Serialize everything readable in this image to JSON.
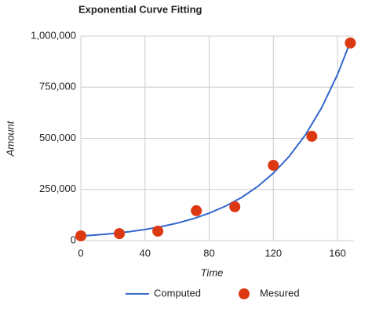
{
  "chart_data": {
    "type": "combo",
    "title": "Exponential Curve Fitting",
    "x_label": "Time",
    "y_label": "Amount",
    "xlim": [
      0,
      170
    ],
    "xticks": [
      0,
      40,
      80,
      120,
      160
    ],
    "ylim": [
      0,
      1000000
    ],
    "yticks": [
      {
        "value": 0,
        "label": "0"
      },
      {
        "value": 250000,
        "label": "250,000"
      },
      {
        "value": 500000,
        "label": "500,000"
      },
      {
        "value": 750000,
        "label": "750,000"
      },
      {
        "value": 1000000,
        "label": "1,000,000"
      }
    ],
    "grid": true,
    "legend": "bottom",
    "series": [
      {
        "name": "Computed",
        "type": "line",
        "color": "#3366cc",
        "x": [
          0,
          10,
          20,
          30,
          40,
          50,
          60,
          70,
          80,
          90,
          100,
          110,
          120,
          130,
          140,
          150,
          160,
          168
        ],
        "values": [
          22000,
          27600,
          34500,
          43300,
          54200,
          67900,
          85100,
          106700,
          133700,
          167500,
          209800,
          262900,
          329400,
          412700,
          517200,
          648000,
          811900,
          972000
        ]
      },
      {
        "name": "Mesured",
        "type": "scatter",
        "color": "#dc3912",
        "x": [
          0,
          24,
          48,
          72,
          96,
          120,
          144,
          168
        ],
        "values": [
          23000,
          34000,
          46000,
          146000,
          165000,
          368000,
          510000,
          966000
        ]
      }
    ]
  }
}
